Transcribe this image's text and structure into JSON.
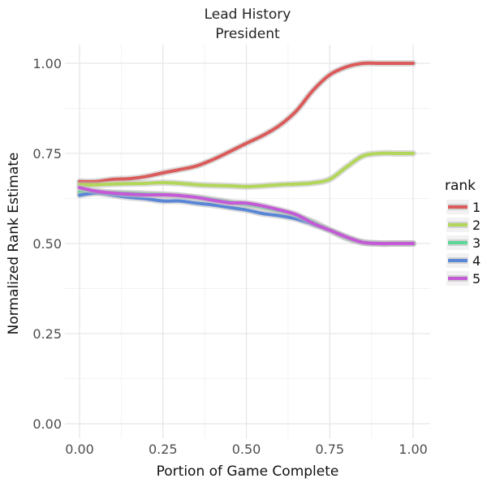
{
  "chart_data": {
    "type": "line",
    "title": "Lead History",
    "subtitle": "President",
    "xlabel": "Portion of Game Complete",
    "ylabel": "Normalized Rank Estimate",
    "xlim": [
      0,
      1
    ],
    "ylim": [
      0,
      1
    ],
    "x_ticks": [
      0,
      0.25,
      0.5,
      0.75,
      1
    ],
    "x_tick_labels": [
      "0.00",
      "0.25",
      "0.50",
      "0.75",
      "1.00"
    ],
    "y_ticks": [
      0,
      0.25,
      0.5,
      0.75,
      1
    ],
    "y_tick_labels": [
      "0.00",
      "0.25",
      "0.50",
      "0.75",
      "1.00"
    ],
    "grid": true,
    "legend": {
      "title": "rank",
      "position": "right"
    },
    "x": [
      0,
      0.05,
      0.1,
      0.15,
      0.2,
      0.25,
      0.3,
      0.35,
      0.4,
      0.45,
      0.5,
      0.55,
      0.6,
      0.65,
      0.7,
      0.75,
      0.8,
      0.85,
      0.9,
      0.95,
      1.0
    ],
    "series": [
      {
        "name": "1",
        "color": "#db5a5a",
        "values": [
          0.672,
          0.672,
          0.678,
          0.68,
          0.686,
          0.696,
          0.705,
          0.715,
          0.733,
          0.755,
          0.778,
          0.8,
          0.828,
          0.868,
          0.925,
          0.968,
          0.99,
          1.0,
          1.0,
          1.0,
          1.0
        ]
      },
      {
        "name": "2",
        "color": "#b2d65a",
        "values": [
          0.663,
          0.663,
          0.665,
          0.666,
          0.667,
          0.669,
          0.667,
          0.663,
          0.661,
          0.66,
          0.658,
          0.66,
          0.663,
          0.665,
          0.668,
          0.678,
          0.712,
          0.743,
          0.75,
          0.75,
          0.75
        ]
      },
      {
        "name": "3",
        "color": "#5ad696",
        "values": [
          0.643,
          0.643,
          0.641,
          0.64,
          0.638,
          0.636,
          0.633,
          0.628,
          0.622,
          0.615,
          0.608,
          0.6,
          0.59,
          0.576,
          0.56,
          0.537,
          0.515,
          0.503,
          0.5,
          0.5,
          0.5
        ]
      },
      {
        "name": "4",
        "color": "#5a86d6",
        "values": [
          0.634,
          0.64,
          0.634,
          0.628,
          0.624,
          0.618,
          0.618,
          0.612,
          0.607,
          0.6,
          0.593,
          0.583,
          0.577,
          0.568,
          0.553,
          0.537,
          0.518,
          0.503,
          0.5,
          0.5,
          0.5
        ]
      },
      {
        "name": "5",
        "color": "#c45ad6",
        "values": [
          0.655,
          0.645,
          0.64,
          0.637,
          0.635,
          0.635,
          0.633,
          0.628,
          0.62,
          0.613,
          0.612,
          0.604,
          0.593,
          0.58,
          0.556,
          0.537,
          0.518,
          0.503,
          0.5,
          0.5,
          0.5
        ]
      }
    ]
  }
}
